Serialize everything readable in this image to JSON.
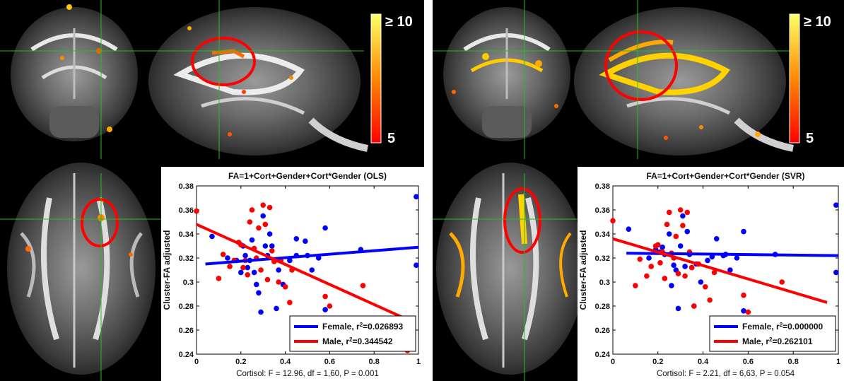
{
  "panels": [
    {
      "color_scale": {
        "max_label": "≥ 10",
        "min_label": "5"
      },
      "chart_data": {
        "type": "scatter",
        "title": "FA=1+Cort+Gender+Cort*Gender (OLS)",
        "xlabel": "Cortisol: F = 12.96, df = 1,60, P = 0.001",
        "ylabel": "Cluster-FA adjusted",
        "xlim": [
          0,
          1
        ],
        "ylim": [
          0.24,
          0.38
        ],
        "xticks": [
          "0",
          "0.2",
          "0.4",
          "0.6",
          "0.8",
          "1"
        ],
        "yticks": [
          "0.24",
          "0.26",
          "0.28",
          "0.3",
          "0.32",
          "0.34",
          "0.36",
          "0.38"
        ],
        "series": [
          {
            "name": "Female",
            "color": "#0000ff",
            "legend_label": "Female, r",
            "legend_value": "=0.026893",
            "points": [
              [
                0.07,
                0.338
              ],
              [
                0.14,
                0.32
              ],
              [
                0.18,
                0.318
              ],
              [
                0.2,
                0.308
              ],
              [
                0.21,
                0.33
              ],
              [
                0.22,
                0.322
              ],
              [
                0.23,
                0.312
              ],
              [
                0.24,
                0.318
              ],
              [
                0.25,
                0.335
              ],
              [
                0.26,
                0.308
              ],
              [
                0.27,
                0.298
              ],
              [
                0.28,
                0.291
              ],
              [
                0.29,
                0.275
              ],
              [
                0.3,
                0.355
              ],
              [
                0.31,
                0.33
              ],
              [
                0.32,
                0.322
              ],
              [
                0.33,
                0.34
              ],
              [
                0.34,
                0.33
              ],
              [
                0.35,
                0.318
              ],
              [
                0.36,
                0.278
              ],
              [
                0.37,
                0.31
              ],
              [
                0.39,
                0.298
              ],
              [
                0.42,
                0.318
              ],
              [
                0.45,
                0.322
              ],
              [
                0.45,
                0.336
              ],
              [
                0.49,
                0.334
              ],
              [
                0.5,
                0.322
              ],
              [
                0.52,
                0.31
              ],
              [
                0.55,
                0.32
              ],
              [
                0.58,
                0.345
              ],
              [
                0.58,
                0.277
              ],
              [
                0.74,
                0.327
              ],
              [
                0.99,
                0.371
              ],
              [
                0.99,
                0.314
              ]
            ],
            "fit": [
              [
                0.04,
                0.315
              ],
              [
                1.0,
                0.329
              ]
            ]
          },
          {
            "name": "Male",
            "color": "#ff0000",
            "legend_label": "Male, r",
            "legend_value": "=0.344542",
            "points": [
              [
                0.0,
                0.359
              ],
              [
                0.1,
                0.303
              ],
              [
                0.12,
                0.323
              ],
              [
                0.15,
                0.313
              ],
              [
                0.17,
                0.318
              ],
              [
                0.19,
                0.333
              ],
              [
                0.2,
                0.331
              ],
              [
                0.21,
                0.312
              ],
              [
                0.22,
                0.318
              ],
              [
                0.23,
                0.306
              ],
              [
                0.24,
                0.35
              ],
              [
                0.25,
                0.36
              ],
              [
                0.26,
                0.328
              ],
              [
                0.27,
                0.32
              ],
              [
                0.28,
                0.345
              ],
              [
                0.29,
                0.31
              ],
              [
                0.3,
                0.364
              ],
              [
                0.31,
                0.348
              ],
              [
                0.32,
                0.302
              ],
              [
                0.33,
                0.362
              ],
              [
                0.34,
                0.326
              ],
              [
                0.35,
                0.317
              ],
              [
                0.37,
                0.3
              ],
              [
                0.38,
                0.318
              ],
              [
                0.4,
                0.296
              ],
              [
                0.42,
                0.283
              ],
              [
                0.43,
                0.31
              ],
              [
                0.58,
                0.288
              ],
              [
                0.6,
                0.28
              ],
              [
                0.75,
                0.297
              ],
              [
                0.95,
                0.243
              ]
            ],
            "fit": [
              [
                0.0,
                0.348
              ],
              [
                0.96,
                0.268
              ]
            ]
          }
        ]
      }
    },
    {
      "color_scale": {
        "max_label": "≥ 10",
        "min_label": "5"
      },
      "chart_data": {
        "type": "scatter",
        "title": "FA=1+Cort+Gender+Cort*Gender (SVR)",
        "xlabel": "Cortisol: F = 2.21, df = 6,63, P = 0.054",
        "ylabel": "Cluster-FA adjusted",
        "xlim": [
          0,
          1
        ],
        "ylim": [
          0.24,
          0.38
        ],
        "xticks": [
          "0",
          "0.2",
          "0.4",
          "0.6",
          "0.8",
          "1"
        ],
        "yticks": [
          "0.24",
          "0.26",
          "0.28",
          "0.3",
          "0.32",
          "0.34",
          "0.36",
          "0.38"
        ],
        "series": [
          {
            "name": "Female",
            "color": "#0000ff",
            "legend_label": "Female, r",
            "legend_value": "=0.000000",
            "points": [
              [
                0.07,
                0.344
              ],
              [
                0.16,
                0.32
              ],
              [
                0.19,
                0.327
              ],
              [
                0.21,
                0.325
              ],
              [
                0.22,
                0.329
              ],
              [
                0.23,
                0.323
              ],
              [
                0.25,
                0.34
              ],
              [
                0.26,
                0.297
              ],
              [
                0.27,
                0.314
              ],
              [
                0.28,
                0.31
              ],
              [
                0.29,
                0.278
              ],
              [
                0.3,
                0.33
              ],
              [
                0.31,
                0.355
              ],
              [
                0.32,
                0.313
              ],
              [
                0.33,
                0.342
              ],
              [
                0.34,
                0.323
              ],
              [
                0.35,
                0.312
              ],
              [
                0.36,
                0.28
              ],
              [
                0.37,
                0.315
              ],
              [
                0.39,
                0.3
              ],
              [
                0.42,
                0.318
              ],
              [
                0.44,
                0.321
              ],
              [
                0.46,
                0.336
              ],
              [
                0.49,
                0.322
              ],
              [
                0.5,
                0.323
              ],
              [
                0.52,
                0.31
              ],
              [
                0.55,
                0.32
              ],
              [
                0.58,
                0.342
              ],
              [
                0.58,
                0.276
              ],
              [
                0.72,
                0.323
              ],
              [
                0.99,
                0.364
              ],
              [
                0.99,
                0.308
              ]
            ],
            "fit": [
              [
                0.06,
                0.324
              ],
              [
                1.0,
                0.322
              ]
            ]
          },
          {
            "name": "Male",
            "color": "#ff0000",
            "legend_label": "Male, r",
            "legend_value": "=0.262101",
            "points": [
              [
                0.0,
                0.351
              ],
              [
                0.1,
                0.297
              ],
              [
                0.12,
                0.319
              ],
              [
                0.15,
                0.305
              ],
              [
                0.17,
                0.313
              ],
              [
                0.19,
                0.33
              ],
              [
                0.2,
                0.331
              ],
              [
                0.21,
                0.316
              ],
              [
                0.22,
                0.325
              ],
              [
                0.23,
                0.303
              ],
              [
                0.24,
                0.348
              ],
              [
                0.25,
                0.358
              ],
              [
                0.26,
                0.324
              ],
              [
                0.27,
                0.32
              ],
              [
                0.28,
                0.338
              ],
              [
                0.29,
                0.307
              ],
              [
                0.3,
                0.36
              ],
              [
                0.31,
                0.347
              ],
              [
                0.32,
                0.305
              ],
              [
                0.33,
                0.358
              ],
              [
                0.34,
                0.325
              ],
              [
                0.35,
                0.312
              ],
              [
                0.36,
                0.28
              ],
              [
                0.38,
                0.315
              ],
              [
                0.41,
                0.296
              ],
              [
                0.43,
                0.285
              ],
              [
                0.45,
                0.308
              ],
              [
                0.58,
                0.289
              ],
              [
                0.6,
                0.275
              ],
              [
                0.75,
                0.3
              ]
            ],
            "fit": [
              [
                0.0,
                0.336
              ],
              [
                0.95,
                0.283
              ]
            ]
          }
        ]
      }
    }
  ]
}
